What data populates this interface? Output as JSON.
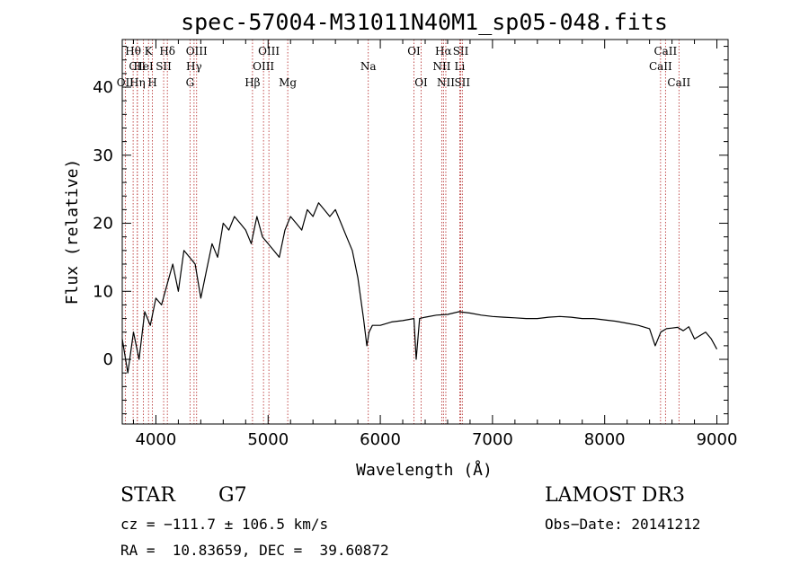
{
  "chart_data": {
    "type": "line",
    "title": "spec-57004-M31011N40M1_sp05-048.fits",
    "xlabel": "Wavelength (Å)",
    "ylabel": "Flux (relative)",
    "xlim": [
      3700,
      9100
    ],
    "ylim": [
      -9.5,
      47
    ],
    "xticks": [
      4000,
      5000,
      6000,
      7000,
      8000,
      9000
    ],
    "xtick_labels": [
      "4000",
      "5000",
      "6000",
      "7000",
      "8000",
      "9000"
    ],
    "yticks": [
      0,
      10,
      20,
      30,
      40
    ],
    "ytick_labels": [
      "0",
      "10",
      "20",
      "30",
      "40"
    ],
    "line_color": "#000000",
    "marker_color": "#b22222",
    "spectrum": {
      "name": "flux",
      "x": [
        3700,
        3750,
        3800,
        3850,
        3900,
        3950,
        4000,
        4050,
        4100,
        4150,
        4200,
        4250,
        4300,
        4350,
        4400,
        4450,
        4500,
        4550,
        4600,
        4650,
        4700,
        4750,
        4800,
        4850,
        4900,
        4950,
        5000,
        5050,
        5100,
        5150,
        5200,
        5250,
        5300,
        5350,
        5400,
        5450,
        5500,
        5550,
        5600,
        5650,
        5700,
        5750,
        5800,
        5850,
        5880,
        5900,
        5930,
        6000,
        6100,
        6200,
        6300,
        6320,
        6350,
        6400,
        6500,
        6600,
        6700,
        6800,
        6900,
        7000,
        7100,
        7200,
        7300,
        7400,
        7500,
        7600,
        7700,
        7800,
        7900,
        8000,
        8100,
        8200,
        8300,
        8400,
        8450,
        8500,
        8550,
        8600,
        8650,
        8700,
        8750,
        8800,
        8850,
        8900,
        8950,
        9000
      ],
      "y": [
        3,
        -2,
        4,
        0,
        7,
        5,
        9,
        8,
        11,
        14,
        10,
        16,
        15,
        14,
        9,
        13,
        17,
        15,
        20,
        19,
        21,
        20,
        19,
        17,
        21,
        18,
        17,
        16,
        15,
        19,
        21,
        20,
        19,
        22,
        21,
        23,
        22,
        21,
        22,
        20,
        18,
        16,
        12,
        6,
        2,
        4,
        5,
        5,
        5.5,
        5.7,
        6,
        0,
        6,
        6.2,
        6.5,
        6.6,
        7,
        6.8,
        6.5,
        6.3,
        6.2,
        6.1,
        6,
        6,
        6.2,
        6.3,
        6.2,
        6,
        6,
        5.8,
        5.6,
        5.3,
        5,
        4.5,
        2,
        4,
        4.5,
        4.6,
        4.7,
        4.2,
        4.8,
        3,
        3.5,
        4,
        3,
        1.5
      ]
    },
    "line_markers": [
      {
        "label": "Hθ",
        "x": 3797,
        "row": 1
      },
      {
        "label": "CII",
        "x": 3834,
        "row": 2
      },
      {
        "label": "OII",
        "x": 3727,
        "row": 3
      },
      {
        "label": "K",
        "x": 3934,
        "row": 1
      },
      {
        "label": "HeI",
        "x": 3889,
        "row": 2
      },
      {
        "label": "Hη",
        "x": 3835,
        "row": 3
      },
      {
        "label": "Hδ",
        "x": 4102,
        "row": 1
      },
      {
        "label": "SII",
        "x": 4069,
        "row": 2
      },
      {
        "label": "H",
        "x": 3969,
        "row": 3
      },
      {
        "label": "OIII",
        "x": 4363,
        "row": 1
      },
      {
        "label": "Hγ",
        "x": 4340,
        "row": 2
      },
      {
        "label": "G",
        "x": 4304,
        "row": 3
      },
      {
        "label": "OIII",
        "x": 5007,
        "row": 1
      },
      {
        "label": "OIII",
        "x": 4959,
        "row": 2
      },
      {
        "label": "Hβ",
        "x": 4861,
        "row": 3
      },
      {
        "label": "Mg",
        "x": 5175,
        "row": 3
      },
      {
        "label": "Na",
        "x": 5893,
        "row": 2
      },
      {
        "label": "OI",
        "x": 6300,
        "row": 1
      },
      {
        "label": "OI",
        "x": 6364,
        "row": 3
      },
      {
        "label": "Hα",
        "x": 6563,
        "row": 1
      },
      {
        "label": "SII",
        "x": 6717,
        "row": 1
      },
      {
        "label": "NII",
        "x": 6548,
        "row": 2
      },
      {
        "label": "Li",
        "x": 6708,
        "row": 2
      },
      {
        "label": "NII",
        "x": 6584,
        "row": 3
      },
      {
        "label": "SII",
        "x": 6731,
        "row": 3
      },
      {
        "label": "CaII",
        "x": 8542,
        "row": 1
      },
      {
        "label": "CaII",
        "x": 8498,
        "row": 2
      },
      {
        "label": "CaII",
        "x": 8662,
        "row": 3
      }
    ]
  },
  "info": {
    "class": "STAR",
    "subclass": "G7",
    "survey": "LAMOST DR3",
    "redshift": "cz = −111.7 ± 106.5 km/s",
    "obs_date": "Obs−Date: 20141212",
    "coords": "RA =  10.83659, DEC =  39.60872"
  }
}
